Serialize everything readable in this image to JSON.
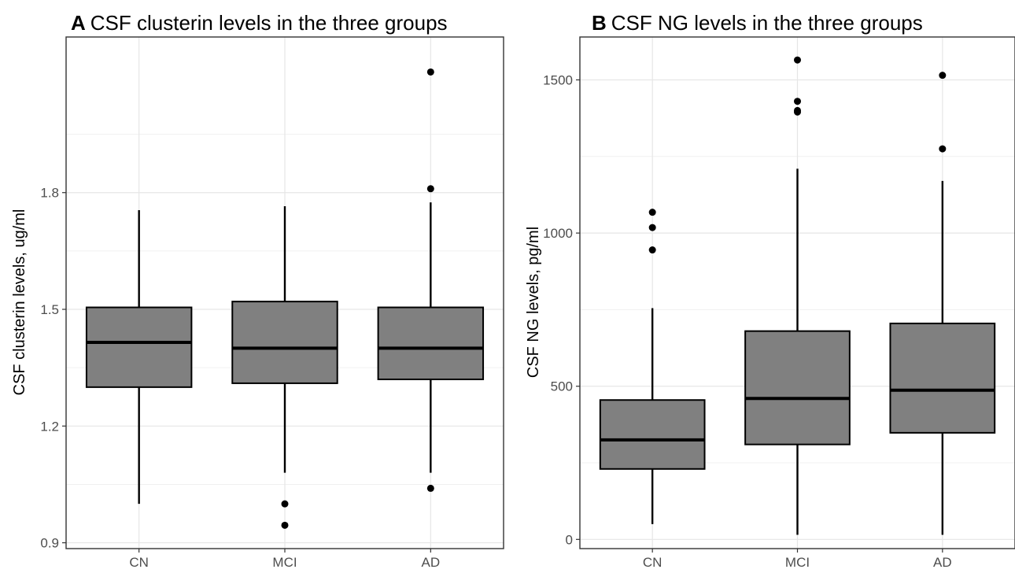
{
  "chart_data": [
    {
      "type": "box",
      "panel": "A",
      "title": "CSF clusterin levels in the three groups",
      "xlabel": "",
      "ylabel": "CSF clusterin levels, ug/ml",
      "ylim": [
        0.885,
        2.2
      ],
      "yticks": [
        0.9,
        1.2,
        1.5,
        1.8
      ],
      "ytick_labels": [
        "0.9",
        "1.2",
        "1.5",
        "1.8"
      ],
      "grid": true,
      "box_color": "#808080",
      "categories": [
        "CN",
        "MCI",
        "AD"
      ],
      "boxes": [
        {
          "category": "CN",
          "lower_whisker": 1.0,
          "q1": 1.3,
          "median": 1.415,
          "q3": 1.505,
          "upper_whisker": 1.755,
          "outliers": []
        },
        {
          "category": "MCI",
          "lower_whisker": 1.08,
          "q1": 1.31,
          "median": 1.4,
          "q3": 1.52,
          "upper_whisker": 1.765,
          "outliers": [
            1.0,
            0.945
          ]
        },
        {
          "category": "AD",
          "lower_whisker": 1.08,
          "q1": 1.32,
          "median": 1.4,
          "q3": 1.505,
          "upper_whisker": 1.775,
          "outliers": [
            2.11,
            1.81,
            1.04
          ]
        }
      ]
    },
    {
      "type": "box",
      "panel": "B",
      "title": "CSF NG levels in the three groups",
      "xlabel": "",
      "ylabel": "CSF NG levels, pg/ml",
      "ylim": [
        -30,
        1640
      ],
      "yticks": [
        0,
        500,
        1000,
        1500
      ],
      "ytick_labels": [
        "0",
        "500",
        "1000",
        "1500"
      ],
      "grid": true,
      "box_color": "#808080",
      "categories": [
        "CN",
        "MCI",
        "AD"
      ],
      "boxes": [
        {
          "category": "CN",
          "lower_whisker": 50,
          "q1": 230,
          "median": 325,
          "q3": 455,
          "upper_whisker": 755,
          "outliers": [
            1068,
            1018,
            945
          ]
        },
        {
          "category": "MCI",
          "lower_whisker": 15,
          "q1": 310,
          "median": 460,
          "q3": 680,
          "upper_whisker": 1210,
          "outliers": [
            1565,
            1430,
            1400,
            1395
          ]
        },
        {
          "category": "AD",
          "lower_whisker": 15,
          "q1": 348,
          "median": 487,
          "q3": 705,
          "upper_whisker": 1170,
          "outliers": [
            1515,
            1275
          ]
        }
      ]
    }
  ]
}
